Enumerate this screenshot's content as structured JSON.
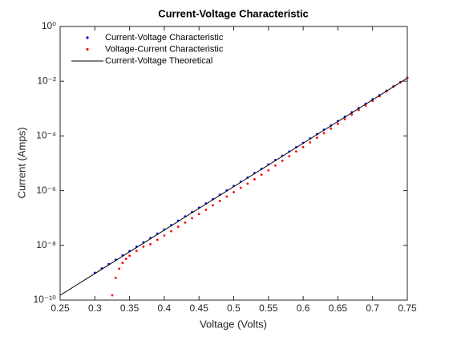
{
  "chart_data": {
    "type": "scatter",
    "title": "Current-Voltage Characteristic",
    "xlabel": "Voltage (Volts)",
    "ylabel": "Current (Amps)",
    "xlim": [
      0.25,
      0.75
    ],
    "xticks": [
      0.25,
      0.3,
      0.35,
      0.4,
      0.45,
      0.5,
      0.55,
      0.6,
      0.65,
      0.7,
      0.75
    ],
    "ylim": [
      1e-10,
      1
    ],
    "ylog": true,
    "yticks": [
      {
        "value": 1e-10,
        "label": "10⁻¹⁰"
      },
      {
        "value": 1e-08,
        "label": "10⁻⁸"
      },
      {
        "value": 1e-06,
        "label": "10⁻⁶"
      },
      {
        "value": 0.0001,
        "label": "10⁻⁴"
      },
      {
        "value": 0.01,
        "label": "10⁻²"
      },
      {
        "value": 1,
        "label": "10⁰"
      }
    ],
    "grid": false,
    "legend": "northwest",
    "series": [
      {
        "name": "Current-Voltage Characteristic",
        "color": "#0000ff",
        "mark": "dot",
        "x": [
          0.3,
          0.31,
          0.32,
          0.33,
          0.34,
          0.35,
          0.36,
          0.37,
          0.38,
          0.39,
          0.4,
          0.41,
          0.42,
          0.43,
          0.44,
          0.45,
          0.46,
          0.47,
          0.48,
          0.49,
          0.5,
          0.51,
          0.52,
          0.53,
          0.54,
          0.55,
          0.56,
          0.57,
          0.58,
          0.59,
          0.6,
          0.61,
          0.62,
          0.63,
          0.64,
          0.65,
          0.66,
          0.67,
          0.68,
          0.69,
          0.7,
          0.71,
          0.72,
          0.73,
          0.74,
          0.75
        ],
        "values": [
          1e-09,
          1.44e-09,
          2.08e-09,
          3e-09,
          4.3e-09,
          6.2e-09,
          8.9e-09,
          1.29e-08,
          1.86e-08,
          2.7e-08,
          3.8e-08,
          5.5e-08,
          8e-08,
          1.15e-07,
          1.66e-07,
          2.4e-07,
          3.4e-07,
          4.9e-07,
          7.1e-07,
          1.02e-06,
          1.48e-06,
          2.1e-06,
          3e-06,
          4.4e-06,
          6.3e-06,
          9.1e-06,
          1.32e-05,
          1.9e-05,
          2.7e-05,
          3.9e-05,
          5.6e-05,
          8.1e-05,
          0.000117,
          0.000169,
          0.00024,
          0.00035,
          0.0005,
          0.00073,
          0.00105,
          0.0015,
          0.0022,
          0.0031,
          0.0045,
          0.0065,
          0.0093,
          0.0135
        ]
      },
      {
        "name": "Voltage-Current Characteristic",
        "color": "#ff0000",
        "mark": "dot",
        "x": [
          0.325,
          0.33,
          0.335,
          0.34,
          0.345,
          0.35,
          0.36,
          0.37,
          0.38,
          0.39,
          0.4,
          0.41,
          0.42,
          0.43,
          0.44,
          0.45,
          0.46,
          0.47,
          0.48,
          0.49,
          0.5,
          0.51,
          0.52,
          0.53,
          0.54,
          0.55,
          0.56,
          0.57,
          0.58,
          0.59,
          0.6,
          0.61,
          0.62,
          0.63,
          0.64,
          0.65,
          0.66,
          0.67,
          0.68,
          0.69,
          0.7,
          0.71,
          0.72,
          0.73,
          0.74,
          0.75
        ],
        "values": [
          1.5e-10,
          6.5e-10,
          1.4e-09,
          2.3e-09,
          3.2e-09,
          4.2e-09,
          6.3e-09,
          9e-09,
          1.1e-08,
          1.6e-08,
          2.3e-08,
          3.3e-08,
          4.8e-08,
          6.8e-08,
          9.8e-08,
          1.4e-07,
          2e-07,
          2.9e-07,
          4.2e-07,
          6.1e-07,
          8.8e-07,
          1.27e-06,
          1.8e-06,
          2.6e-06,
          3.8e-06,
          5.5e-06,
          8.3e-06,
          1.23e-05,
          1.8e-05,
          2.7e-05,
          3.9e-05,
          5.8e-05,
          8.5e-05,
          0.000126,
          0.000186,
          0.000275,
          0.00041,
          0.0006,
          0.00089,
          0.00129,
          0.0019,
          0.0028,
          0.0042,
          0.0062,
          0.0091,
          0.013
        ]
      },
      {
        "name": "Current-Voltage Theoretical",
        "color": "#000000",
        "mark": "line",
        "x": [
          0.25,
          0.75
        ],
        "values": [
          1.5e-10,
          0.013
        ]
      }
    ]
  }
}
